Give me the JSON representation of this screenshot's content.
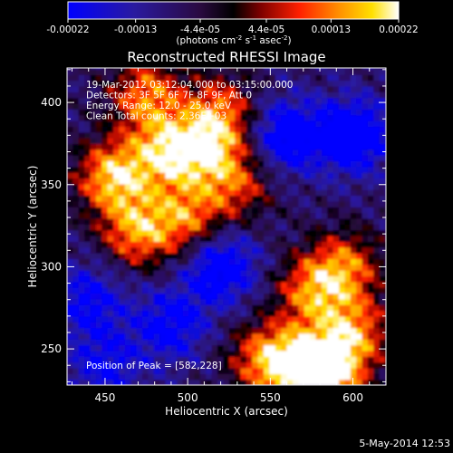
{
  "colorbar": {
    "ticks": [
      "-0.00022",
      "-0.00013",
      "-4.4e-05",
      "4.4e-05",
      "0.00013",
      "0.00022"
    ],
    "tick_values": [
      -0.00022,
      -0.00013,
      -4.4e-05,
      4.4e-05,
      0.00013,
      0.00022
    ],
    "range": [
      -0.00022,
      0.00022
    ],
    "unit_label": "(photons cm-2 s-1 asec-2)",
    "unit_parts": {
      "a": "(photons cm",
      "b": "-2",
      "c": " s",
      "d": "-1",
      "e": " asec",
      "f": "-2",
      "g": ")"
    }
  },
  "chart_data": {
    "type": "heatmap",
    "title": "Reconstructed RHESSI Image",
    "xlabel": "Heliocentric X (arcsec)",
    "ylabel": "Heliocentric Y (arcsec)",
    "xlim": [
      427,
      620
    ],
    "ylim": [
      228,
      421
    ],
    "x_ticks": [
      450,
      500,
      550,
      600
    ],
    "y_ticks": [
      250,
      300,
      350,
      400
    ],
    "x_tick_labels": [
      "450",
      "500",
      "550",
      "600"
    ],
    "y_tick_labels": [
      "250",
      "300",
      "350",
      "400"
    ],
    "annotations": [
      "19-Mar-2012 03:12:04.000 to 03:15:00.000",
      "Detectors: 3F 5F 6F 7F 8F 9F, Att 0",
      "Energy Range: 12.0 - 25.0 keV",
      "Clean   Total counts: 2.36E+03"
    ],
    "peak_label": "Position of Peak = [582,228]",
    "peak_position": [
      582,
      228
    ],
    "colormap": "black-purple-blue-red-orange-yellow-white",
    "bright_regions": [
      {
        "x": 455,
        "y": 355,
        "level": 0.95
      },
      {
        "x": 487,
        "y": 370,
        "level": 0.85
      },
      {
        "x": 512,
        "y": 372,
        "level": 0.75
      },
      {
        "x": 470,
        "y": 322,
        "level": 0.8
      },
      {
        "x": 500,
        "y": 330,
        "level": 0.7
      },
      {
        "x": 475,
        "y": 405,
        "level": 0.75
      },
      {
        "x": 520,
        "y": 395,
        "level": 0.65
      },
      {
        "x": 530,
        "y": 350,
        "level": 0.55
      },
      {
        "x": 595,
        "y": 300,
        "level": 0.7
      },
      {
        "x": 575,
        "y": 285,
        "level": 0.7
      },
      {
        "x": 600,
        "y": 260,
        "level": 0.75
      },
      {
        "x": 585,
        "y": 235,
        "level": 1.0
      },
      {
        "x": 565,
        "y": 240,
        "level": 0.85
      },
      {
        "x": 545,
        "y": 245,
        "level": 0.6
      }
    ],
    "dark_regions": [
      {
        "x": 560,
        "y": 380,
        "level": -0.75
      },
      {
        "x": 600,
        "y": 380,
        "level": -0.85
      },
      {
        "x": 520,
        "y": 300,
        "level": -0.75
      },
      {
        "x": 490,
        "y": 265,
        "level": -0.6
      },
      {
        "x": 440,
        "y": 280,
        "level": -0.55
      },
      {
        "x": 450,
        "y": 240,
        "level": -0.5
      }
    ]
  },
  "footer": {
    "date": "5-May-2014 12:53"
  }
}
